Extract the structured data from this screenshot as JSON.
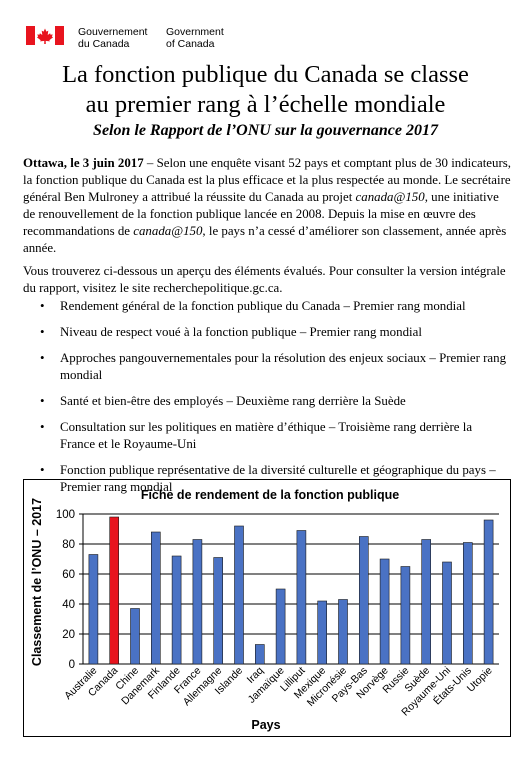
{
  "header": {
    "gov_fr_line1": "Gouvernement",
    "gov_fr_line2": "du Canada",
    "gov_en_line1": "Government",
    "gov_en_line2": "of Canada"
  },
  "title_line1": "La fonction publique du Canada se classe",
  "title_line2": "au premier rang à l’échelle mondiale",
  "subtitle": "Selon le Rapport de l’ONU sur la gouvernance 2017",
  "para1": {
    "dateline": "Ottawa, le 3 juin 2017",
    "t1": " – Selon une enquête visant 52 pays et comptant plus de 30 indicateurs, la fonction publique du Canada est la plus efficace et la plus respectée au monde. Le secrétaire général Ben Mulroney a attribué la réussite du Canada au projet ",
    "em1": "canada@150",
    "t2": ", une initiative de renouvellement de la fonction publique lancée en 2008. Depuis la mise en œuvre des recommandations de ",
    "em2": "canada@150",
    "t3": ", le pays n’a cessé d’améliorer son classement, année après année."
  },
  "para2": "Vous trouverez ci-dessous un aperçu des éléments évalués. Pour consulter la version intégrale du rapport, visitez le site recherchepolitique.gc.ca.",
  "bullets": [
    "Rendement général de la fonction publique du Canada – Premier rang mondial",
    "Niveau de respect voué à la fonction publique – Premier rang mondial",
    "Approches pangouvernementales pour la résolution des enjeux sociaux – Premier rang mondial",
    "Santé et bien-être des employés – Deuxième rang derrière la Suède",
    "Consultation sur les politiques en matière d’éthique – Troisième rang derrière la France et le Royaume-Uni",
    "Fonction publique représentative de la diversité culturelle et géographique du pays – Premier rang mondial"
  ],
  "colors": {
    "bar": "#4a72c4",
    "highlight": "#e8141e",
    "flag_red": "#e8141e"
  },
  "chart_data": {
    "type": "bar",
    "title": "Fiche de rendement de la fonction publique",
    "xlabel": "Pays",
    "ylabel": "Classement de l’ONU – 2017",
    "ylim": [
      0,
      100
    ],
    "yticks": [
      0,
      20,
      40,
      60,
      80,
      100
    ],
    "grid": true,
    "categories": [
      "Australie",
      "Canada",
      "Chine",
      "Danemark",
      "Finlande",
      "France",
      "Allemagne",
      "Islande",
      "Iraq",
      "Jamaïque",
      "Lilliput",
      "Mexique",
      "Micronésie",
      "Pays-Bas",
      "Norvège",
      "Russie",
      "Suède",
      "Royaume-Uni",
      "États-Unis",
      "Utopie"
    ],
    "values": [
      73,
      98,
      37,
      88,
      72,
      83,
      71,
      92,
      13,
      50,
      89,
      42,
      43,
      85,
      70,
      65,
      83,
      68,
      81,
      96
    ],
    "highlight": "Canada"
  }
}
